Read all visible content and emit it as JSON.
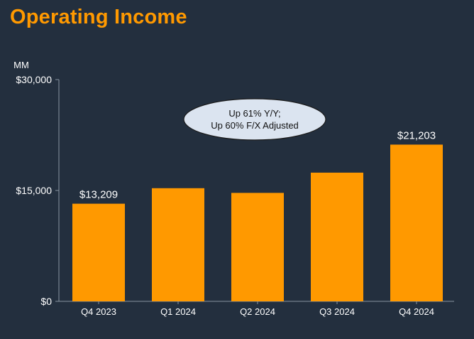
{
  "page": {
    "title": "Operating Income"
  },
  "chart_data": {
    "type": "bar",
    "title": "Operating Income",
    "ylabel": "MM",
    "xlabel": "",
    "categories": [
      "Q4 2023",
      "Q1 2024",
      "Q2 2024",
      "Q3 2024",
      "Q4 2024"
    ],
    "values": [
      13209,
      15307,
      14672,
      17411,
      21203
    ],
    "ylim": [
      0,
      30000
    ],
    "yticks": [
      0,
      15000,
      30000
    ],
    "ytick_labels": [
      "$0",
      "$15,000",
      "$30,000"
    ],
    "data_labels": [
      {
        "index": 0,
        "text": "$13,209"
      },
      {
        "index": 4,
        "text": "$21,203"
      }
    ],
    "annotation": {
      "line1": "Up 61% Y/Y;",
      "line2": "Up 60% F/X Adjusted"
    },
    "colors": {
      "bar": "#ff9900",
      "background": "#232f3e",
      "axis": "#8a94a3",
      "bubble_fill": "#dbe4f0"
    },
    "grid": false
  }
}
